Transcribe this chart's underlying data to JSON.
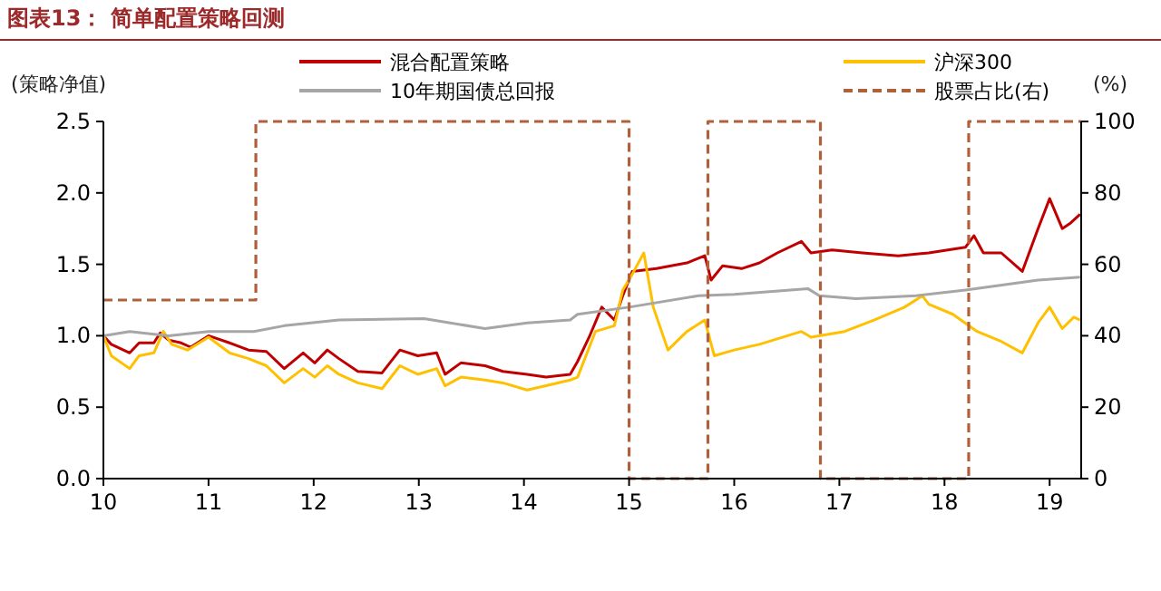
{
  "chart_data": {
    "type": "line",
    "title": "图表13：  简单配置策略回测",
    "ylabel": "(策略净值)",
    "y2label": "(%)",
    "xlim": [
      10,
      19.3
    ],
    "xticks": [
      10,
      11,
      12,
      13,
      14,
      15,
      16,
      17,
      18,
      19
    ],
    "ylim": [
      0,
      2.5
    ],
    "yticks": [
      {
        "value": 0,
        "label": "0.0"
      },
      {
        "value": 0.5,
        "label": "0.5"
      },
      {
        "value": 1,
        "label": "1.0"
      },
      {
        "value": 1.5,
        "label": "1.5"
      },
      {
        "value": 2,
        "label": "2.0"
      },
      {
        "value": 2.5,
        "label": "2.5"
      }
    ],
    "y2lim": [
      0,
      100
    ],
    "y2ticks": [
      0,
      20,
      40,
      60,
      80,
      100
    ],
    "legend": "top",
    "grid": false,
    "series": [
      {
        "name": "混合配置策略",
        "color": "#c00000",
        "x": [
          10,
          10.075,
          10.25,
          10.34,
          10.48,
          10.54,
          10.62,
          10.74,
          10.83,
          11.0,
          11.2,
          11.38,
          11.55,
          11.72,
          11.9,
          12.01,
          12.13,
          12.24,
          12.42,
          12.65,
          12.82,
          12.99,
          13.17,
          13.25,
          13.4,
          13.63,
          13.8,
          14.03,
          14.21,
          14.44,
          14.51,
          14.62,
          14.74,
          14.86,
          14.94,
          15.03,
          15.26,
          15.55,
          15.72,
          15.78,
          15.89,
          16.07,
          16.24,
          16.41,
          16.64,
          16.73,
          16.93,
          17.22,
          17.56,
          17.85,
          18.2,
          18.28,
          18.37,
          18.54,
          18.74,
          18.89,
          19.0,
          19.12,
          19.2,
          19.29
        ],
        "values": [
          1.0,
          0.94,
          0.88,
          0.95,
          0.95,
          1.02,
          0.97,
          0.95,
          0.92,
          1.0,
          0.95,
          0.9,
          0.89,
          0.77,
          0.88,
          0.81,
          0.9,
          0.84,
          0.75,
          0.74,
          0.9,
          0.86,
          0.88,
          0.73,
          0.81,
          0.79,
          0.75,
          0.73,
          0.71,
          0.73,
          0.82,
          0.99,
          1.2,
          1.11,
          1.28,
          1.45,
          1.47,
          1.51,
          1.56,
          1.39,
          1.49,
          1.47,
          1.51,
          1.58,
          1.66,
          1.58,
          1.6,
          1.58,
          1.56,
          1.58,
          1.62,
          1.7,
          1.58,
          1.58,
          1.45,
          1.75,
          1.96,
          1.75,
          1.79,
          1.85
        ]
      },
      {
        "name": "沪深300",
        "color": "#ffc000",
        "x": [
          10,
          10.075,
          10.25,
          10.34,
          10.48,
          10.57,
          10.65,
          10.8,
          11.0,
          11.2,
          11.38,
          11.55,
          11.72,
          11.9,
          12.01,
          12.13,
          12.24,
          12.42,
          12.65,
          12.82,
          12.99,
          13.17,
          13.25,
          13.4,
          13.63,
          13.8,
          14.03,
          14.21,
          14.44,
          14.51,
          14.68,
          14.86,
          14.94,
          15.03,
          15.14,
          15.23,
          15.37,
          15.55,
          15.72,
          15.81,
          16.0,
          16.24,
          16.64,
          16.73,
          17.05,
          17.33,
          17.62,
          17.79,
          17.85,
          18.08,
          18.31,
          18.54,
          18.74,
          18.89,
          19.0,
          19.12,
          19.23,
          19.29
        ],
        "values": [
          1.0,
          0.86,
          0.77,
          0.86,
          0.88,
          1.03,
          0.94,
          0.9,
          0.99,
          0.88,
          0.84,
          0.79,
          0.67,
          0.77,
          0.71,
          0.79,
          0.73,
          0.67,
          0.63,
          0.79,
          0.73,
          0.77,
          0.65,
          0.71,
          0.69,
          0.67,
          0.62,
          0.65,
          0.69,
          0.71,
          1.03,
          1.07,
          1.32,
          1.43,
          1.58,
          1.2,
          0.9,
          1.03,
          1.11,
          0.86,
          0.9,
          0.94,
          1.03,
          0.99,
          1.03,
          1.11,
          1.2,
          1.28,
          1.22,
          1.15,
          1.03,
          0.96,
          0.88,
          1.09,
          1.2,
          1.05,
          1.13,
          1.11
        ]
      },
      {
        "name": "10年期国债总回报",
        "color": "#a6a6a6",
        "x": [
          10,
          10.25,
          10.62,
          11.0,
          11.43,
          11.72,
          12.24,
          13.05,
          13.63,
          14.03,
          14.44,
          14.51,
          15.0,
          15.66,
          16.0,
          16.7,
          16.81,
          17.16,
          17.73,
          18.2,
          18.89,
          19.29
        ],
        "values": [
          1.0,
          1.03,
          1.0,
          1.03,
          1.03,
          1.07,
          1.11,
          1.12,
          1.05,
          1.09,
          1.11,
          1.15,
          1.2,
          1.28,
          1.29,
          1.33,
          1.28,
          1.26,
          1.28,
          1.32,
          1.39,
          1.41
        ]
      },
      {
        "name": "股票占比(右)",
        "type": "step",
        "axis": "y2",
        "line_style": "dashed",
        "color": "#b0603a",
        "x": [
          10,
          11.45,
          15.0,
          15.75,
          16.82,
          18.23,
          19.3
        ],
        "values": [
          50,
          100,
          0,
          100,
          0,
          100,
          100
        ]
      }
    ]
  }
}
